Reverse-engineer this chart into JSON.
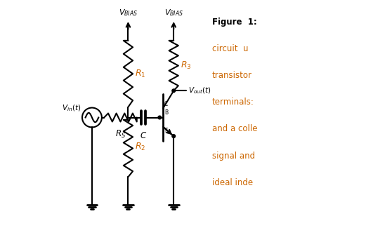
{
  "bg_color": "#ffffff",
  "line_color": "#000000",
  "orange_color": "#cc6600",
  "figure_text_lines": [
    "Figure  1:",
    "circuit  u",
    "transistor",
    "terminals:",
    "and a colle",
    "signal and",
    "ideal inde"
  ],
  "lw": 1.5
}
